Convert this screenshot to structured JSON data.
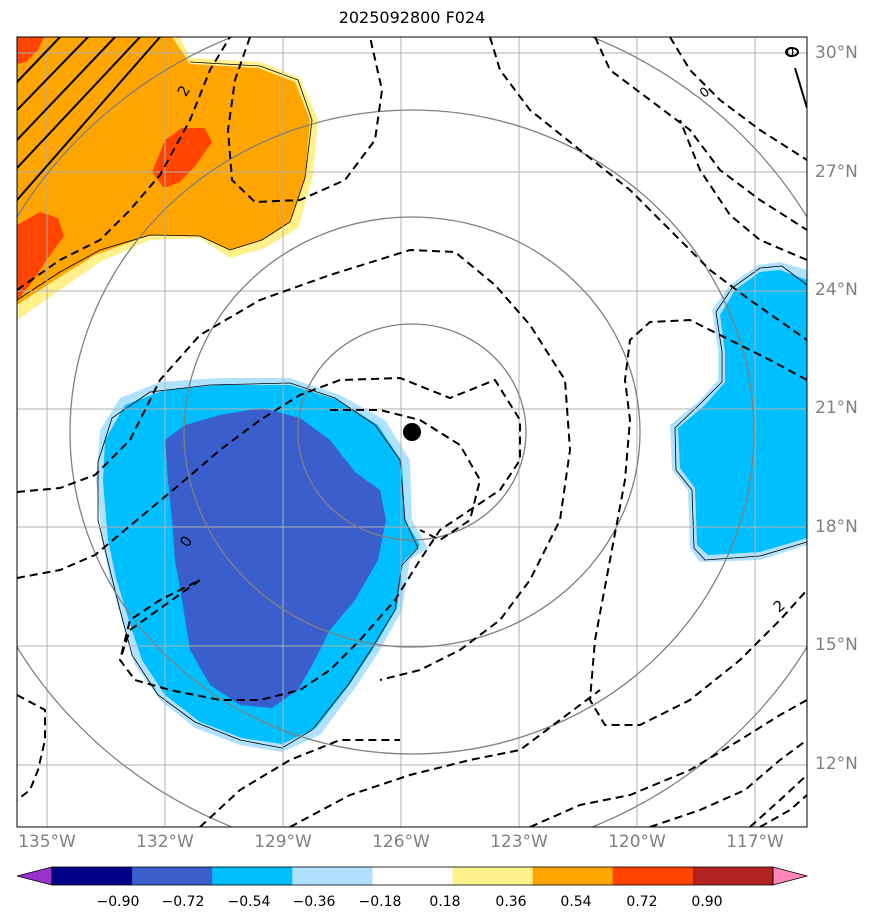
{
  "title": "2025092800 F024",
  "lat_labels": [
    "30°N",
    "27°N",
    "24°N",
    "21°N",
    "18°N",
    "15°N",
    "12°N"
  ],
  "lon_labels": [
    "135°W",
    "132°W",
    "129°W",
    "126°W",
    "123°W",
    "120°W",
    "117°W"
  ],
  "contour_labels": [
    "2",
    "0",
    "0",
    "2",
    "0"
  ],
  "colorbar": {
    "ticks": [
      "−0.90",
      "−0.72",
      "−0.54",
      "−0.36",
      "−0.18",
      "0.18",
      "0.36",
      "0.54",
      "0.72",
      "0.90"
    ],
    "colors": [
      "#9932cc",
      "#00008b",
      "#3a5fcd",
      "#00bfff",
      "#b0e2ff",
      "#ffffff",
      "#fff08c",
      "#ffa500",
      "#ff4500",
      "#b22222",
      "#ff86b4"
    ]
  },
  "storm_center": {
    "lon": -125.8,
    "lat": 20.3
  },
  "range_rings": [
    "1",
    "2",
    "3",
    "4"
  ]
}
